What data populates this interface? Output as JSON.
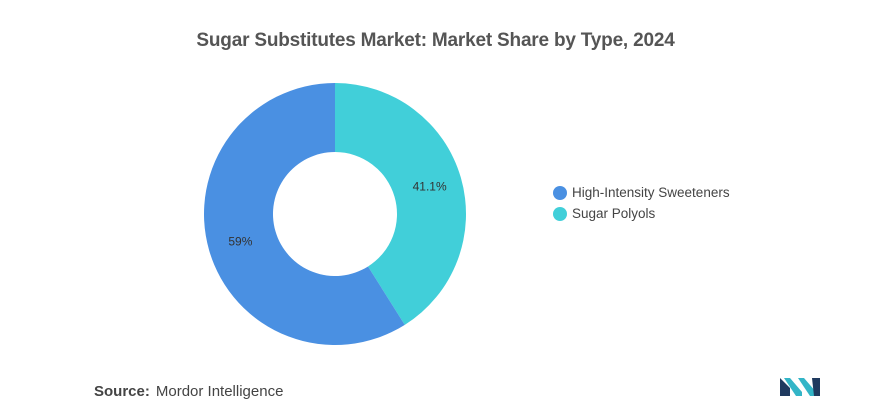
{
  "chart_data": {
    "type": "pie",
    "title": "Sugar Substitutes Market: Market Share by Type, 2024",
    "categories": [
      "High-Intensity Sweeteners",
      "Sugar Polyols"
    ],
    "values": [
      59,
      41.1
    ],
    "value_labels": [
      "59%",
      "41.1%"
    ],
    "colors": [
      "#4a90e2",
      "#41cfd9"
    ],
    "donut": true,
    "legend_position": "right"
  },
  "source": {
    "label": "Source:",
    "value": "Mordor Intelligence"
  },
  "logo": {
    "colors": [
      "#1f3a5f",
      "#33b5c7"
    ]
  }
}
